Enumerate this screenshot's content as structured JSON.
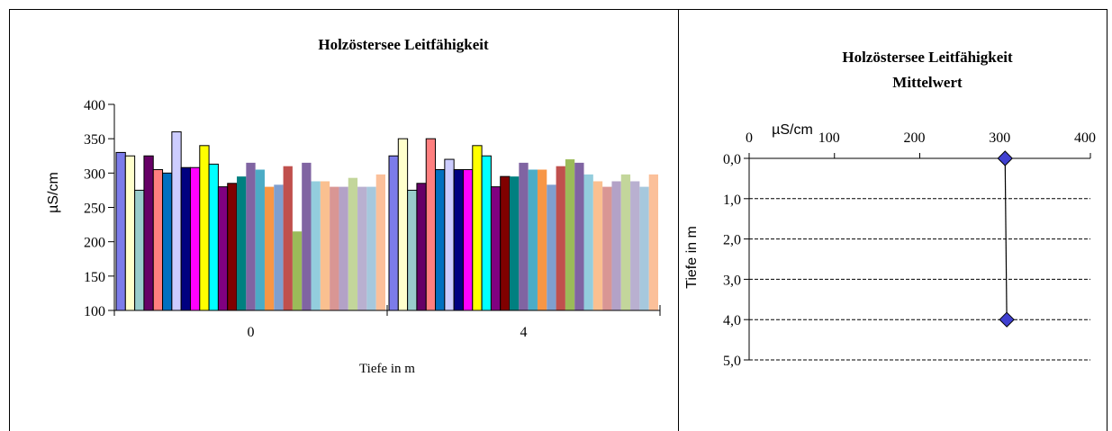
{
  "chart_data": [
    {
      "type": "bar",
      "title": "Holzöstersee Leitfähigkeit",
      "xlabel": "Tiefe in m",
      "ylabel": "µS/cm",
      "ylim": [
        100,
        400
      ],
      "yticks": [
        "100",
        "150",
        "200",
        "250",
        "300",
        "350",
        "400"
      ],
      "categories": [
        "0",
        "4"
      ],
      "legend": "none",
      "colors": [
        "#7c7cea",
        "#ffffcc",
        "#99cccc",
        "#660066",
        "#ff7f7f",
        "#0070c0",
        "#ccccff",
        "#000080",
        "#ff00ff",
        "#ffff00",
        "#00ffff",
        "#800080",
        "#800000",
        "#008080",
        "#8064a2",
        "#4bacc6",
        "#f79646",
        "#7f9fcf",
        "#c0504d",
        "#9bbb59",
        "#8064a2",
        "#93cddd",
        "#fac090",
        "#d99694",
        "#b3a2c7",
        "#c3d69b",
        "#b9b0d0",
        "#a6c8dd",
        "#fbc09a"
      ],
      "series_values": [
        [
          330,
          325
        ],
        [
          325,
          350
        ],
        [
          275,
          275
        ],
        [
          325,
          285
        ],
        [
          305,
          350
        ],
        [
          300,
          305
        ],
        [
          360,
          320
        ],
        [
          308,
          305
        ],
        [
          308,
          305
        ],
        [
          340,
          340
        ],
        [
          313,
          325
        ],
        [
          280,
          280
        ],
        [
          285,
          295
        ],
        [
          295,
          295
        ],
        [
          315,
          315
        ],
        [
          305,
          305
        ],
        [
          280,
          305
        ],
        [
          283,
          283
        ],
        [
          310,
          310
        ],
        [
          215,
          320
        ],
        [
          315,
          315
        ],
        [
          288,
          298
        ],
        [
          288,
          288
        ],
        [
          280,
          280
        ],
        [
          280,
          288
        ],
        [
          293,
          298
        ],
        [
          280,
          288
        ],
        [
          280,
          280
        ],
        [
          298,
          298
        ]
      ]
    },
    {
      "type": "line",
      "title": "Holzöstersee Leitfähigkeit",
      "subtitle": "Mittelwert",
      "xlabel": "µS/cm",
      "ylabel": "Tiefe in m",
      "xlim": [
        0,
        400
      ],
      "xticks": [
        "0",
        "100",
        "200",
        "300",
        "400"
      ],
      "ylim": [
        0,
        5
      ],
      "yticks": [
        "0,0",
        "1,0",
        "2,0",
        "3,0",
        "4,0",
        "5,0"
      ],
      "y_reversed": true,
      "grid": "horizontal dashed",
      "series": [
        {
          "x": [
            300,
            302
          ],
          "y": [
            0.0,
            4.0
          ]
        }
      ],
      "marker_color": "#4040d0"
    }
  ]
}
